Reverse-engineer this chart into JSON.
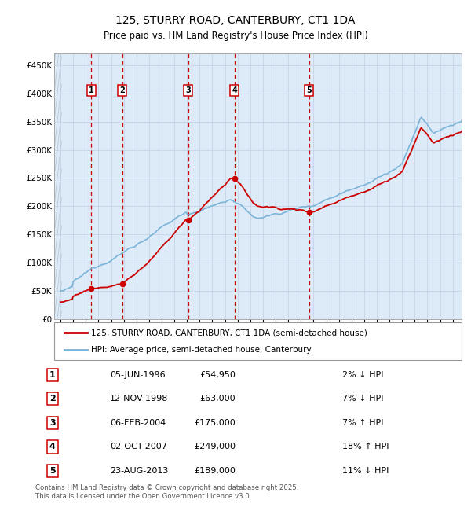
{
  "title": "125, STURRY ROAD, CANTERBURY, CT1 1DA",
  "subtitle": "Price paid vs. HM Land Registry's House Price Index (HPI)",
  "hpi_label": "HPI: Average price, semi-detached house, Canterbury",
  "property_label": "125, STURRY ROAD, CANTERBURY, CT1 1DA (semi-detached house)",
  "footnote": "Contains HM Land Registry data © Crown copyright and database right 2025.\nThis data is licensed under the Open Government Licence v3.0.",
  "sales": [
    {
      "num": 1,
      "date": "05-JUN-1996",
      "year": 1996.43,
      "price": 54950,
      "pct": "2%",
      "dir": "↓"
    },
    {
      "num": 2,
      "date": "12-NOV-1998",
      "year": 1998.87,
      "price": 63000,
      "pct": "7%",
      "dir": "↓"
    },
    {
      "num": 3,
      "date": "06-FEB-2004",
      "year": 2004.1,
      "price": 175000,
      "pct": "7%",
      "dir": "↑"
    },
    {
      "num": 4,
      "date": "02-OCT-2007",
      "year": 2007.75,
      "price": 249000,
      "pct": "18%",
      "dir": "↑"
    },
    {
      "num": 5,
      "date": "23-AUG-2013",
      "year": 2013.65,
      "price": 189000,
      "pct": "11%",
      "dir": "↓"
    }
  ],
  "hpi_color": "#7ab4d8",
  "sale_color": "#cc0000",
  "grid_color": "#c8d8ea",
  "bg_color": "#ddeaf7",
  "hatch_color": "#b8c8d8",
  "ylim": [
    0,
    470000
  ],
  "xlim_start": 1993.5,
  "xlim_end": 2025.7,
  "yticks": [
    0,
    50000,
    100000,
    150000,
    200000,
    250000,
    300000,
    350000,
    400000,
    450000
  ],
  "ytick_labels": [
    "£0",
    "£50K",
    "£100K",
    "£150K",
    "£200K",
    "£250K",
    "£300K",
    "£350K",
    "£400K",
    "£450K"
  ],
  "table_rows": [
    [
      "1",
      "05-JUN-1996",
      "£54,950",
      "2% ↓ HPI"
    ],
    [
      "2",
      "12-NOV-1998",
      "£63,000",
      "7% ↓ HPI"
    ],
    [
      "3",
      "06-FEB-2004",
      "£175,000",
      "7% ↑ HPI"
    ],
    [
      "4",
      "02-OCT-2007",
      "£249,000",
      "18% ↑ HPI"
    ],
    [
      "5",
      "23-AUG-2013",
      "£189,000",
      "11% ↓ HPI"
    ]
  ]
}
